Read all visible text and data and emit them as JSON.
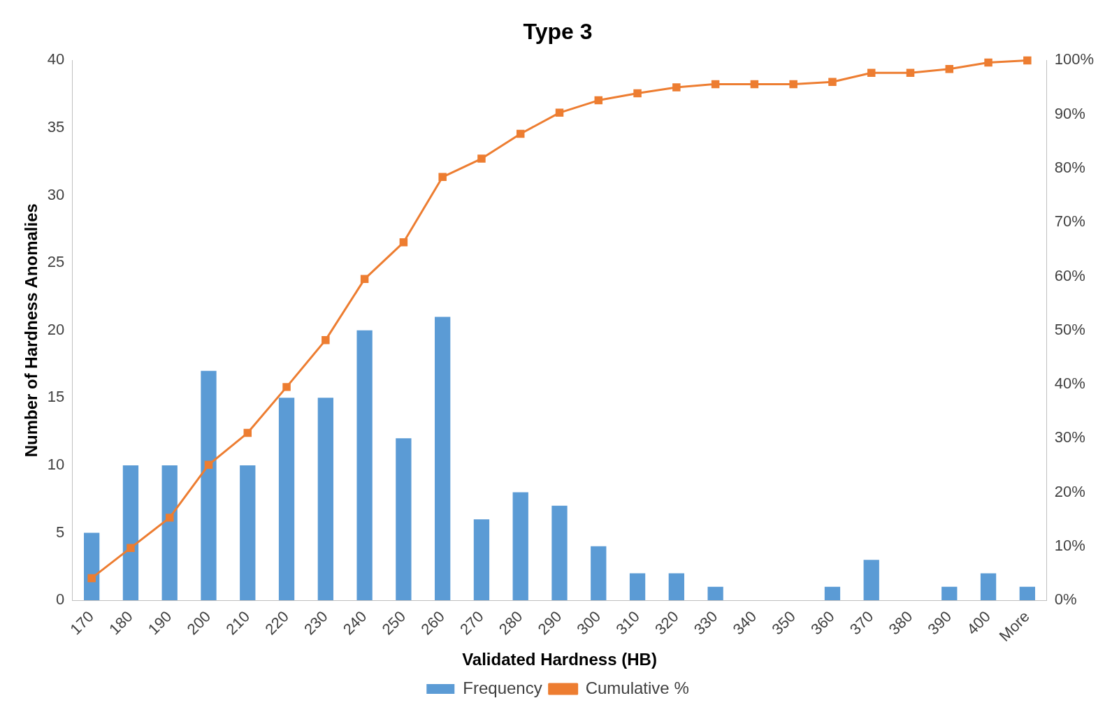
{
  "chart_data": {
    "type": "bar",
    "title": "Type 3",
    "xlabel": "Validated Hardness (HB)",
    "ylabel": "Number of Hardness Anomalies",
    "categories": [
      "170",
      "180",
      "190",
      "200",
      "210",
      "220",
      "230",
      "240",
      "250",
      "260",
      "270",
      "280",
      "290",
      "300",
      "310",
      "320",
      "330",
      "340",
      "350",
      "360",
      "370",
      "380",
      "390",
      "400",
      "More"
    ],
    "series": [
      {
        "name": "Frequency",
        "color": "#5b9bd5",
        "values": [
          5,
          10,
          10,
          17,
          10,
          15,
          15,
          20,
          12,
          21,
          6,
          8,
          7,
          4,
          2,
          2,
          1,
          0,
          0,
          1,
          3,
          0,
          1,
          2,
          1
        ]
      },
      {
        "name": "Cumulative %",
        "type": "line",
        "axis": "y2",
        "color": "#ed7d31",
        "marker": "square",
        "values": [
          4.1,
          9.7,
          15.3,
          25.1,
          31.0,
          39.5,
          48.2,
          59.5,
          66.3,
          78.4,
          81.8,
          86.4,
          90.3,
          92.6,
          93.9,
          95.0,
          95.6,
          95.6,
          95.6,
          96.0,
          97.7,
          97.7,
          98.4,
          99.6,
          100
        ]
      }
    ],
    "ylim": [
      0,
      40
    ],
    "yticks": [
      0,
      5,
      10,
      15,
      20,
      25,
      30,
      35,
      40
    ],
    "y2lim": [
      0,
      100
    ],
    "y2ticks": [
      {
        "value": 0,
        "label": "0%"
      },
      {
        "value": 10,
        "label": "10%"
      },
      {
        "value": 20,
        "label": "20%"
      },
      {
        "value": 30,
        "label": "30%"
      },
      {
        "value": 40,
        "label": "40%"
      },
      {
        "value": 50,
        "label": "50%"
      },
      {
        "value": 60,
        "label": "60%"
      },
      {
        "value": 70,
        "label": "70%"
      },
      {
        "value": 80,
        "label": "80%"
      },
      {
        "value": 90,
        "label": "90%"
      },
      {
        "value": 100,
        "label": "100%"
      }
    ],
    "grid": false,
    "legend": "bottom"
  }
}
